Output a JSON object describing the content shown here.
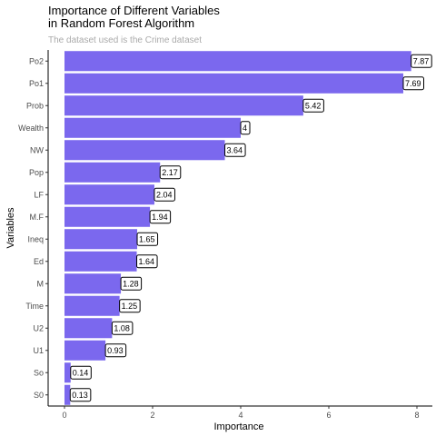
{
  "chart_data": {
    "type": "bar",
    "orientation": "horizontal",
    "title": "Importance of Different Variables\nin Random Forest Algorithm",
    "subtitle": "The dataset used is the Crime dataset",
    "xlabel": "Importance",
    "ylabel": "Variables",
    "xlim": [
      0,
      8.1
    ],
    "xticks": [
      0,
      2,
      4,
      6,
      8
    ],
    "bar_color": "#7b68ee",
    "grid": false,
    "categories": [
      "Po2",
      "Po1",
      "Prob",
      "Wealth",
      "NW",
      "Pop",
      "LF",
      "M.F",
      "Ineq",
      "Ed",
      "M",
      "Time",
      "U2",
      "U1",
      "So",
      "S0"
    ],
    "values": [
      7.87,
      7.69,
      5.42,
      4,
      3.64,
      2.17,
      2.04,
      1.94,
      1.65,
      1.64,
      1.28,
      1.25,
      1.08,
      0.93,
      0.14,
      0.13
    ],
    "data_labels": [
      "7.87",
      "7.69",
      "5.42",
      "4",
      "3.64",
      "2.17",
      "2.04",
      "1.94",
      "1.65",
      "1.64",
      "1.28",
      "1.25",
      "1.08",
      "0.93",
      "0.14",
      "0.13"
    ]
  }
}
